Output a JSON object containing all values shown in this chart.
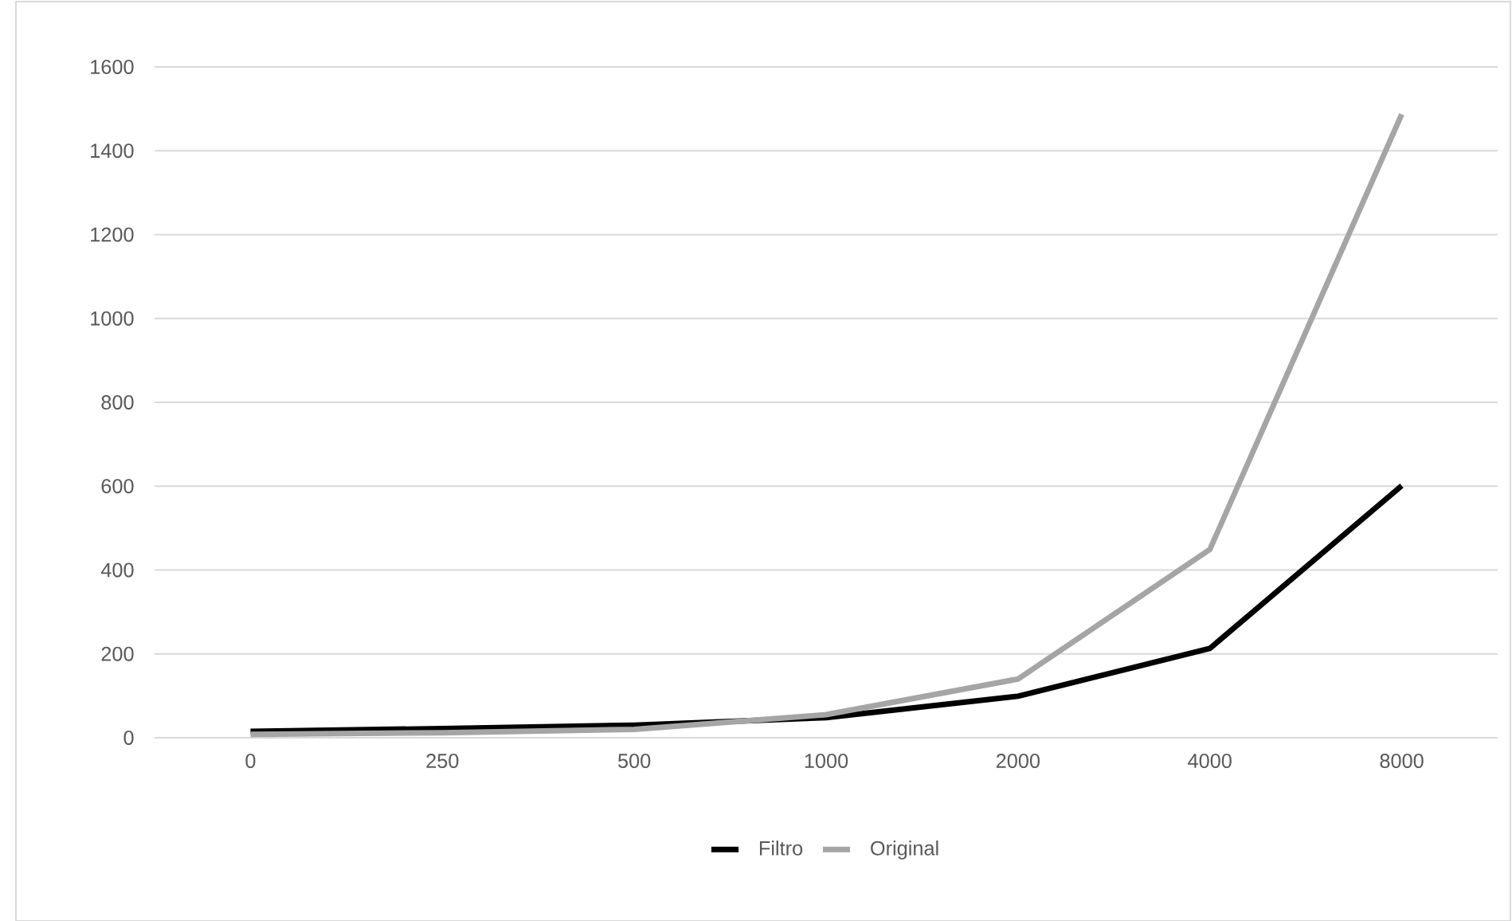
{
  "chart_data": {
    "type": "line",
    "categories": [
      "0",
      "250",
      "500",
      "1000",
      "2000",
      "4000",
      "8000"
    ],
    "series": [
      {
        "name": "Filtro",
        "color": "#000000",
        "values": [
          15,
          22,
          30,
          48,
          99,
          213,
          601
        ]
      },
      {
        "name": "Original",
        "color": "#a5a5a5",
        "values": [
          8,
          12,
          20,
          55,
          140,
          449,
          1487
        ]
      }
    ],
    "ylim": [
      0,
      1600
    ],
    "yticks": [
      0,
      200,
      400,
      600,
      800,
      1000,
      1200,
      1400,
      1600
    ],
    "grid": "y",
    "legend": "bottom",
    "marker": "none",
    "line_style": "solid"
  }
}
